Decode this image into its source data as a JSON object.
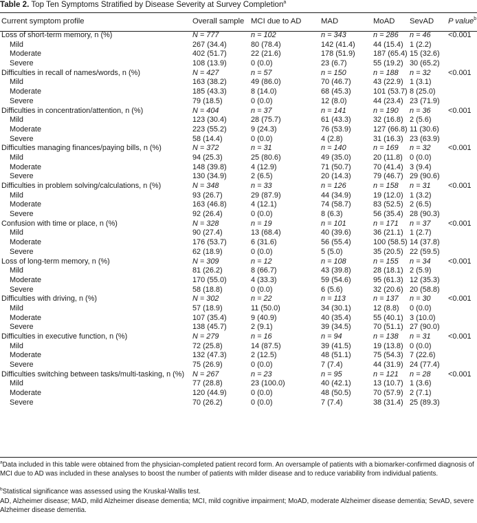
{
  "title": {
    "label": "Table 2.",
    "text": "Top Ten Symptoms Stratified by Disease Severity at Survey Completion",
    "sup": "a"
  },
  "headers": [
    "Current symptom profile",
    "Overall sample",
    "MCI due to AD",
    "MAD",
    "MoAD",
    "SevAD",
    "P value"
  ],
  "p_header_sup": "b",
  "sections": [
    {
      "name": "Loss of short-term memory, n (%)",
      "n": [
        "N = 777",
        "n = 102",
        "n = 343",
        "n = 286",
        "n = 46"
      ],
      "p": "<0.001",
      "rows": [
        [
          "Mild",
          "267 (34.4)",
          "80 (78.4)",
          "142 (41.4)",
          "44 (15.4)",
          "1 (2.2)"
        ],
        [
          "Moderate",
          "402 (51.7)",
          "22 (21.6)",
          "178 (51.9)",
          "187 (65.4)",
          "15 (32.6)"
        ],
        [
          "Severe",
          "108 (13.9)",
          "0 (0.0)",
          "23 (6.7)",
          "55 (19.2)",
          "30 (65.2)"
        ]
      ]
    },
    {
      "name": "Difficulties in recall of names/words, n (%)",
      "n": [
        "N = 427",
        "n = 57",
        "n = 150",
        "n = 188",
        "n = 32"
      ],
      "p": "<0.001",
      "rows": [
        [
          "Mild",
          "163 (38.2)",
          "49 (86.0)",
          "70 (46.7)",
          "43 (22.9)",
          "1 (3.1)"
        ],
        [
          "Moderate",
          "185 (43.3)",
          "8 (14.0)",
          "68 (45.3)",
          "101 (53.7)",
          "8 (25.0)"
        ],
        [
          "Severe",
          "79 (18.5)",
          "0 (0.0)",
          "12 (8.0)",
          "44 (23.4)",
          "23 (71.9)"
        ]
      ]
    },
    {
      "name": "Difficulties in concentration/attention, n (%)",
      "n": [
        "N = 404",
        "n = 37",
        "n = 141",
        "n = 190",
        "n = 36"
      ],
      "p": "<0.001",
      "rows": [
        [
          "Mild",
          "123 (30.4)",
          "28 (75.7)",
          "61 (43.3)",
          "32 (16.8)",
          "2 (5.6)"
        ],
        [
          "Moderate",
          "223 (55.2)",
          "9 (24.3)",
          "76 (53.9)",
          "127 (66.8)",
          "11 (30.6)"
        ],
        [
          "Severe",
          "58 (14.4)",
          "0 (0.0)",
          "4 (2.8)",
          "31 (16.3)",
          "23 (63.9)"
        ]
      ]
    },
    {
      "name": "Difficulties managing finances/paying bills, n (%)",
      "n": [
        "N = 372",
        "n = 31",
        "n = 140",
        "n = 169",
        "n = 32"
      ],
      "p": "<0.001",
      "rows": [
        [
          "Mild",
          "94 (25.3)",
          "25 (80.6)",
          "49 (35.0)",
          "20 (11.8)",
          "0 (0.0)"
        ],
        [
          "Moderate",
          "148 (39.8)",
          "4 (12.9)",
          "71 (50.7)",
          "70 (41.4)",
          "3 (9.4)"
        ],
        [
          "Severe",
          "130 (34.9)",
          "2 (6.5)",
          "20 (14.3)",
          "79 (46.7)",
          "29 (90.6)"
        ]
      ]
    },
    {
      "name": "Difficulties in problem solving/calculations, n (%)",
      "n": [
        "N = 348",
        "n = 33",
        "n = 126",
        "n = 158",
        "n = 31"
      ],
      "p": "<0.001",
      "rows": [
        [
          "Mild",
          "93 (26.7)",
          "29 (87.9)",
          "44 (34.9)",
          "19 (12.0)",
          "1 (3.2)"
        ],
        [
          "Moderate",
          "163 (46.8)",
          "4 (12.1)",
          "74 (58.7)",
          "83 (52.5)",
          "2 (6.5)"
        ],
        [
          "Severe",
          "92 (26.4)",
          "0 (0.0)",
          "8 (6.3)",
          "56 (35.4)",
          "28 (90.3)"
        ]
      ]
    },
    {
      "name": "Confusion with time or place, n (%)",
      "n": [
        "N = 328",
        "n = 19",
        "n = 101",
        "n = 171",
        "n = 37"
      ],
      "p": "<0.001",
      "rows": [
        [
          "Mild",
          "90 (27.4)",
          "13 (68.4)",
          "40 (39.6)",
          "36 (21.1)",
          "1 (2.7)"
        ],
        [
          "Moderate",
          "176 (53.7)",
          "6 (31.6)",
          "56 (55.4)",
          "100 (58.5)",
          "14 (37.8)"
        ],
        [
          "Severe",
          "62 (18.9)",
          "0 (0.0)",
          "5 (5.0)",
          "35 (20.5)",
          "22 (59.5)"
        ]
      ]
    },
    {
      "name": "Loss of long-term memory, n (%)",
      "n": [
        "N = 309",
        "n = 12",
        "n = 108",
        "n = 155",
        "n = 34"
      ],
      "p": "<0.001",
      "rows": [
        [
          "Mild",
          "81 (26.2)",
          "8 (66.7)",
          "43 (39.8)",
          "28 (18.1)",
          "2 (5.9)"
        ],
        [
          "Moderate",
          "170 (55.0)",
          "4 (33.3)",
          "59 (54.6)",
          "95 (61.3)",
          "12 (35.3)"
        ],
        [
          "Severe",
          "58 (18.8)",
          "0 (0.0)",
          "6 (5.6)",
          "32 (20.6)",
          "20 (58.8)"
        ]
      ]
    },
    {
      "name": "Difficulties with driving, n (%)",
      "n": [
        "N = 302",
        "n = 22",
        "n = 113",
        "n = 137",
        "n = 30"
      ],
      "p": "<0.001",
      "rows": [
        [
          "Mild",
          "57 (18.9)",
          "11 (50.0)",
          "34 (30.1)",
          "12 (8.8)",
          "0 (0.0)"
        ],
        [
          "Moderate",
          "107 (35.4)",
          "9 (40.9)",
          "40 (35.4)",
          "55 (40.1)",
          "3 (10.0)"
        ],
        [
          "Severe",
          "138 (45.7)",
          "2 (9.1)",
          "39 (34.5)",
          "70 (51.1)",
          "27 (90.0)"
        ]
      ]
    },
    {
      "name": "Difficulties in executive function, n (%)",
      "n": [
        "N = 279",
        "n = 16",
        "n = 94",
        "n = 138",
        "n = 31"
      ],
      "p": "<0.001",
      "rows": [
        [
          "Mild",
          "72 (25.8)",
          "14 (87.5)",
          "39 (41.5)",
          "19 (13.8)",
          "0 (0.0)"
        ],
        [
          "Moderate",
          "132 (47.3)",
          "2 (12.5)",
          "48 (51.1)",
          "75 (54.3)",
          "7 (22.6)"
        ],
        [
          "Severe",
          "75 (26.9)",
          "0 (0.0)",
          "7 (7.4)",
          "44 (31.9)",
          "24 (77.4)"
        ]
      ]
    },
    {
      "name": "Difficulties switching between tasks/multi-tasking, n (%)",
      "n": [
        "N = 267",
        "n = 23",
        "n = 95",
        "n = 121",
        "n = 28"
      ],
      "p": "<0.001",
      "rows": [
        [
          "Mild",
          "77 (28.8)",
          "23 (100.0)",
          "40 (42.1)",
          "13 (10.7)",
          "1 (3.6)"
        ],
        [
          "Moderate",
          "120 (44.9)",
          "0 (0.0)",
          "48 (50.5)",
          "70 (57.9)",
          "2 (7.1)"
        ],
        [
          "Severe",
          "70 (26.2)",
          "0 (0.0)",
          "7 (7.4)",
          "38 (31.4)",
          "25 (89.3)"
        ]
      ]
    }
  ],
  "footnotes": {
    "a_sup": "a",
    "a": "Data included in this table were obtained from the physician-completed patient record form. An oversample of patients with a biomarker-confirmed diagnosis of MCI due to AD was included in these analyses to boost the number of patients with milder disease and to reduce variability from individual patients.",
    "b_sup": "b",
    "b": "Statistical significance was assessed using the Kruskal-Wallis test.",
    "abbrev": "AD, Alzheimer disease; MAD, mild Alzheimer disease dementia; MCI, mild cognitive impairment; MoAD, moderate Alzheimer disease dementia; SevAD, severe Alzheimer disease dementia."
  }
}
